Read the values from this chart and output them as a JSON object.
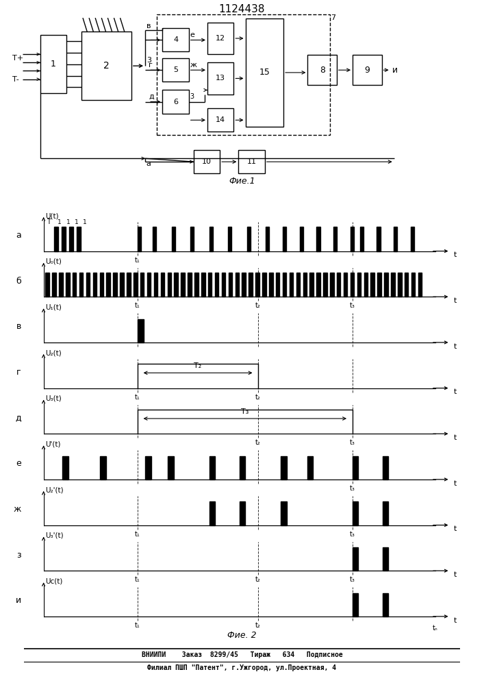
{
  "title": "1124438",
  "fig1_caption": "Фие.1",
  "fig2_caption": "Фие. 2",
  "footer_line1": "ВНИИПИ    Заказ  8299/45   Тираж   634   Подписное",
  "footer_line2": "Филиал ПШП \"Патент\", г.Ужгород, ул.Проектная, 4",
  "bg_color": "#ffffff",
  "line_color": "#000000",
  "t1": 0.25,
  "t2": 0.57,
  "t3": 0.82
}
